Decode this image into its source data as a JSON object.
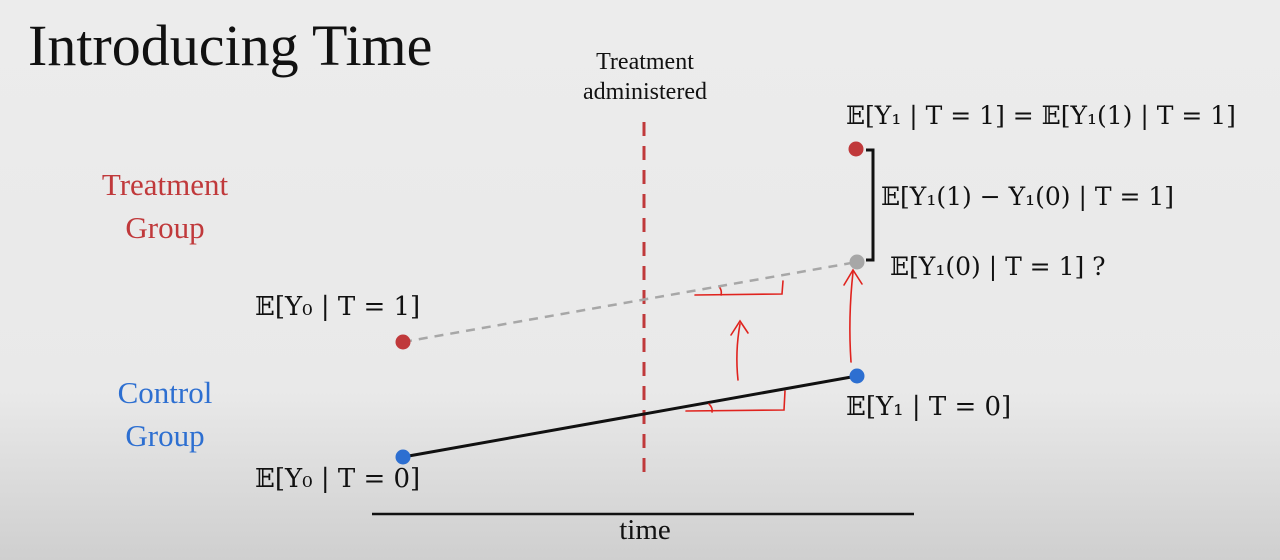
{
  "slide": {
    "title": "Introducing Time",
    "treatment_marker_line1": "Treatment",
    "treatment_marker_line2": "administered",
    "axis_label": "time"
  },
  "groups": {
    "treatment_line1": "Treatment",
    "treatment_line2": "Group",
    "control_line1": "Control",
    "control_line2": "Group"
  },
  "expressions": {
    "e_y0_t1": "𝔼[Y₀ | T = 1]",
    "e_y0_t0": "𝔼[Y₀ | T = 0]",
    "e_y1_t0": "𝔼[Y₁ | T = 0]",
    "e_y1_t1_top": "𝔼[Y₁ | T = 1] = 𝔼[Y₁(1) | T = 1]",
    "effect": "𝔼[Y₁(1) − Y₁(0) | T = 1]",
    "counterfactual": "𝔼[Y₁(0) | T = 1] ?"
  },
  "colors": {
    "treatment": "#c0393b",
    "control": "#2d6fd1",
    "counterfactual": "#a7a7a7",
    "annotation": "#e0231e"
  }
}
